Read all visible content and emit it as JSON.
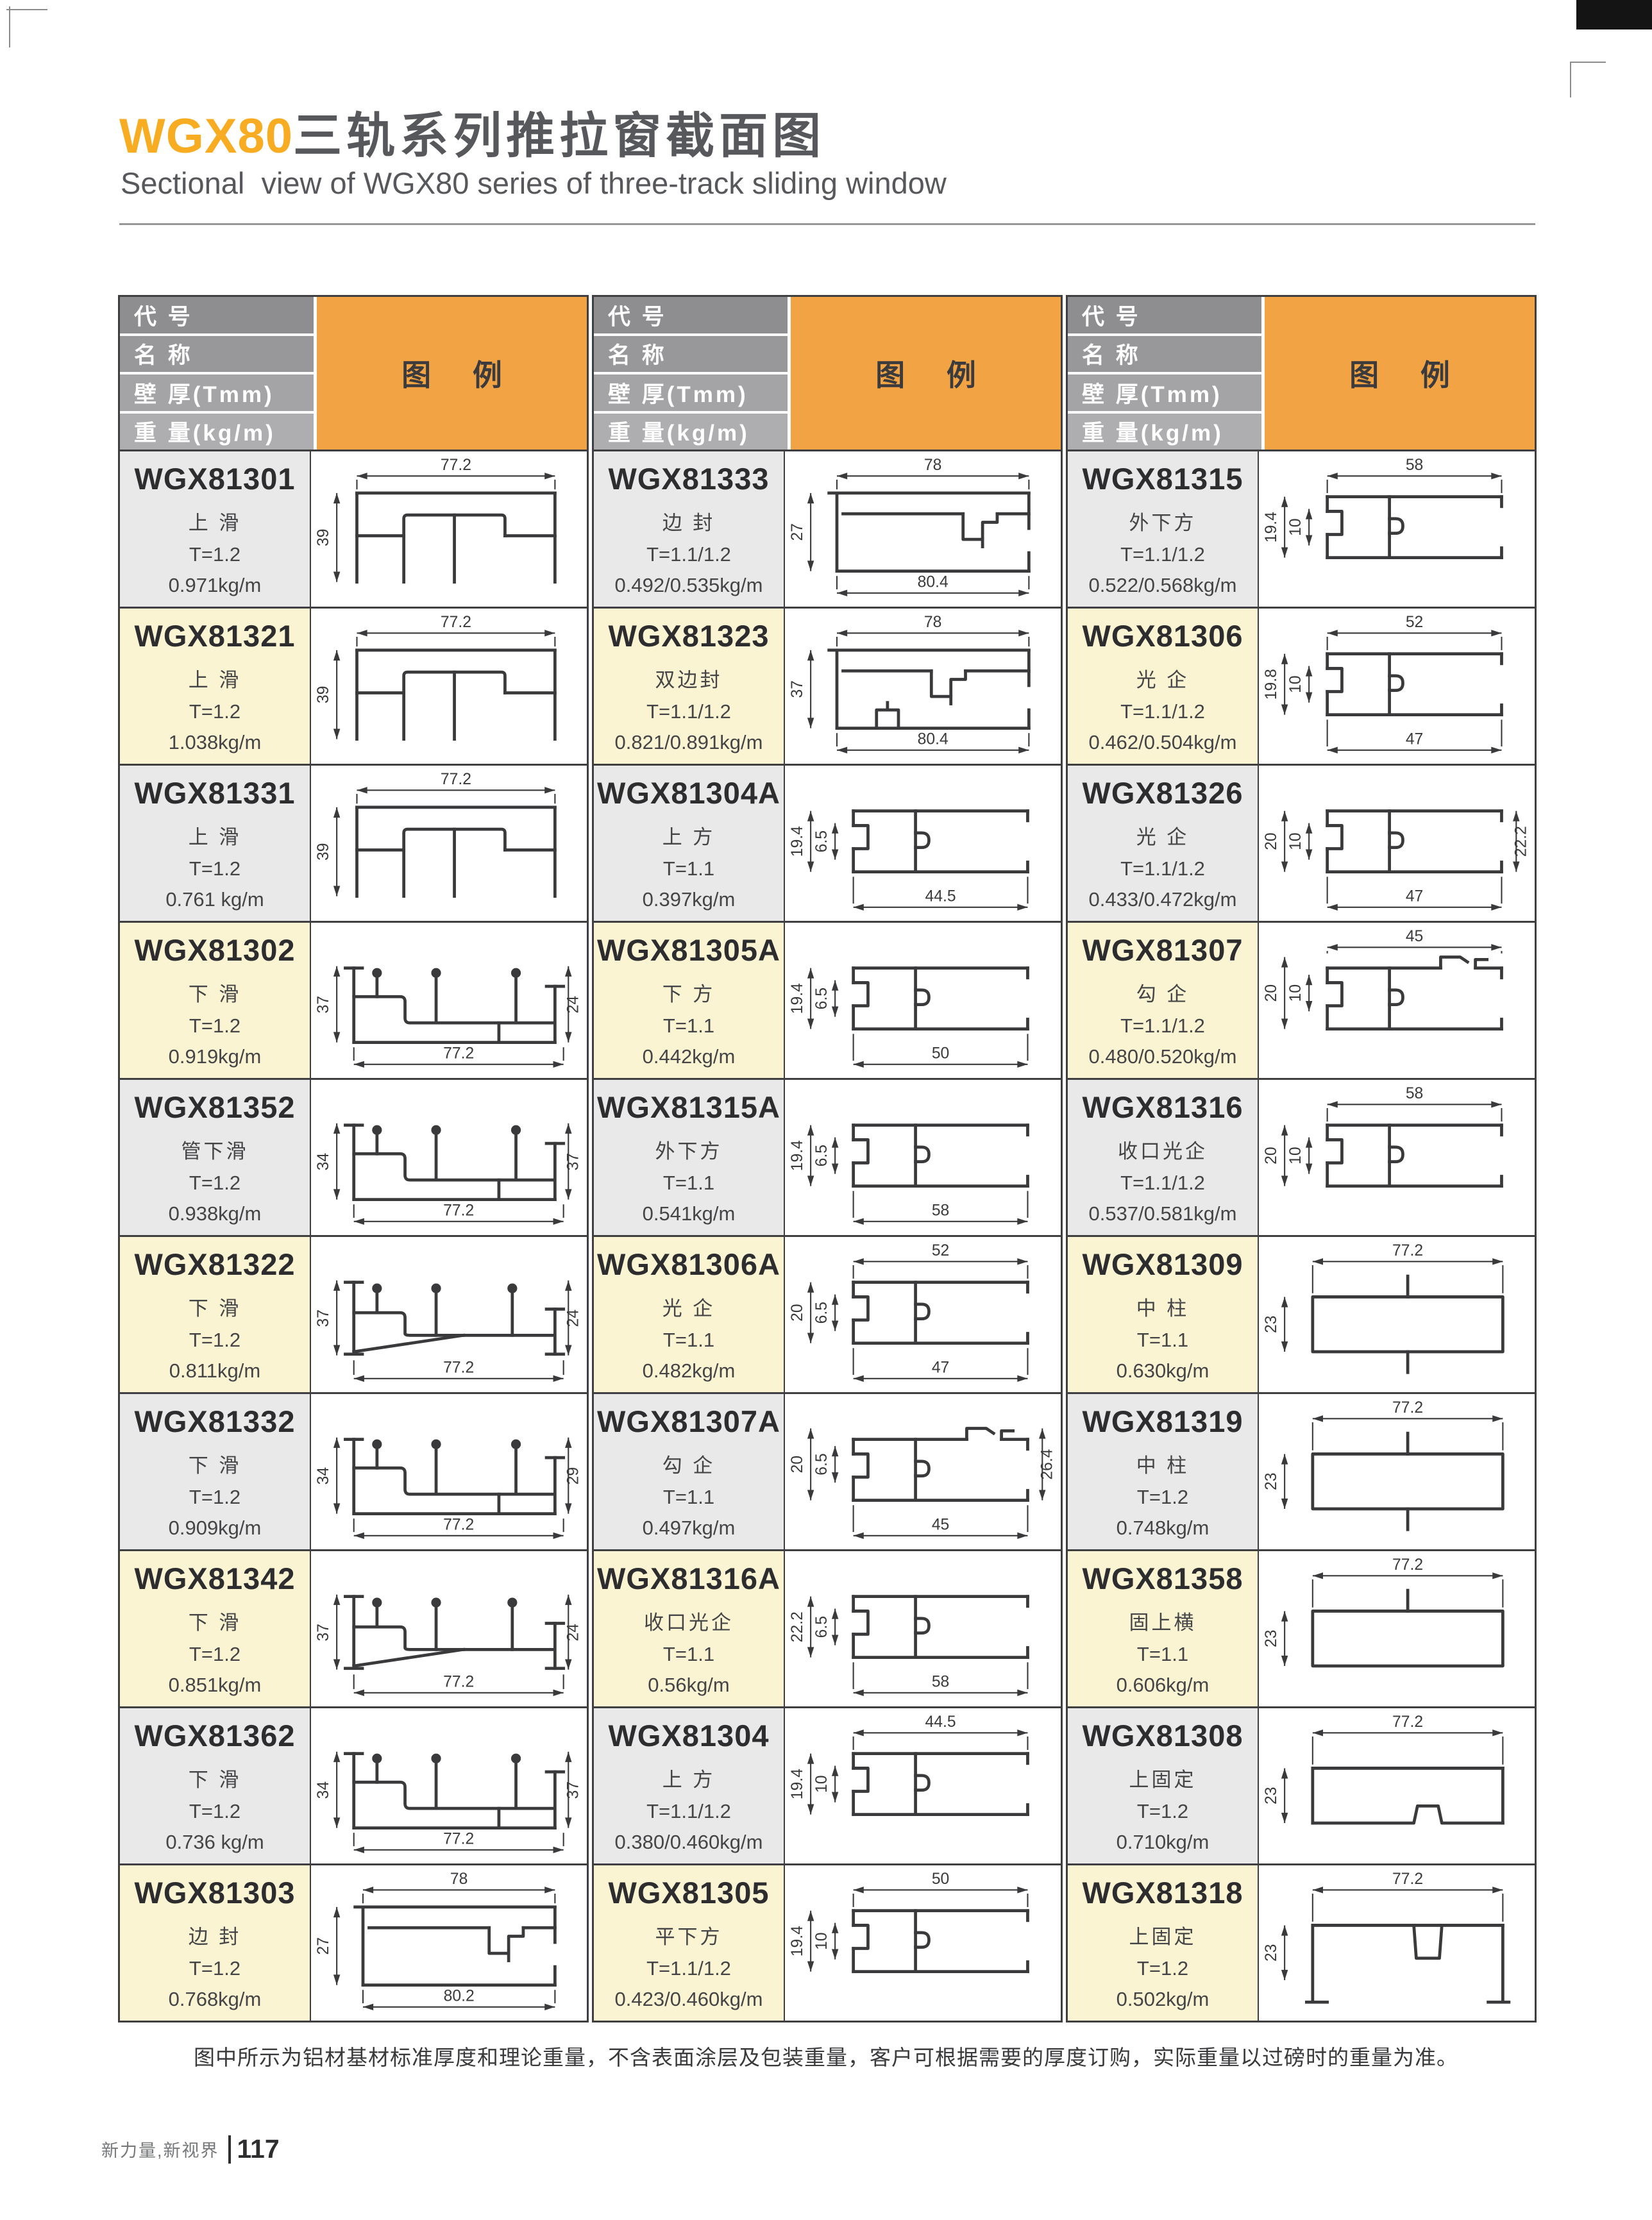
{
  "page": {
    "title_brand": "WGX80",
    "title_cn": "三轨系列推拉窗截面图",
    "subtitle": "Sectional  view of WGX80 series of three-track sliding window",
    "footer_note": "图中所示为铝材基材标准厚度和理论重量，不含表面涂层及包装重量，客户可根据需要的厚度订购，实际重量以过磅时的重量为准。",
    "footer_brand": "新力量,新视界",
    "page_number": "117"
  },
  "colors": {
    "accent_orange": "#F2A444",
    "title_orange": "#F7AC21",
    "header_grays": [
      "#8E8E90",
      "#98989A",
      "#A4A4A6",
      "#AEAEB0"
    ],
    "row_gray": "#E9E9EA",
    "row_cream": "#FAF4D2",
    "line_dark": "#3F3F41",
    "drawing_ink": "#3A3A3C"
  },
  "table": {
    "header": {
      "code_label": "代 号",
      "name_label": "名 称",
      "thickness_label": "壁 厚(Tmm)",
      "weight_label": "重 量(kg/m)",
      "legend_label": "图 例"
    },
    "groups": [
      {
        "rows": [
          {
            "code": "WGX81301",
            "name": "上 滑",
            "thickness": "T=1.2",
            "weight": "0.971kg/m",
            "shape": "top-track",
            "dims": [
              {
                "side": "top",
                "value": "77.2"
              },
              {
                "side": "left",
                "value": "39"
              }
            ]
          },
          {
            "code": "WGX81321",
            "name": "上 滑",
            "thickness": "T=1.2",
            "weight": "1.038kg/m",
            "shape": "top-track",
            "dims": [
              {
                "side": "top",
                "value": "77.2"
              },
              {
                "side": "left",
                "value": "39"
              }
            ]
          },
          {
            "code": "WGX81331",
            "name": "上 滑",
            "thickness": "T=1.2",
            "weight": "0.761 kg/m",
            "shape": "top-track",
            "dims": [
              {
                "side": "top",
                "value": "77.2"
              },
              {
                "side": "left",
                "value": "39"
              }
            ]
          },
          {
            "code": "WGX81302",
            "name": "下 滑",
            "thickness": "T=1.2",
            "weight": "0.919kg/m",
            "shape": "bottom-track",
            "dims": [
              {
                "side": "left",
                "value": "37"
              },
              {
                "side": "right",
                "value": "24"
              },
              {
                "side": "bottom",
                "value": "77.2"
              }
            ]
          },
          {
            "code": "WGX81352",
            "name": "管下滑",
            "thickness": "T=1.2",
            "weight": "0.938kg/m",
            "shape": "bottom-track",
            "dims": [
              {
                "side": "left",
                "value": "34"
              },
              {
                "side": "right",
                "value": "37"
              },
              {
                "side": "bottom",
                "value": "77.2"
              }
            ]
          },
          {
            "code": "WGX81322",
            "name": "下 滑",
            "thickness": "T=1.2",
            "weight": "0.811kg/m",
            "shape": "bottom-track-slope",
            "dims": [
              {
                "side": "left",
                "value": "37"
              },
              {
                "side": "right",
                "value": "24"
              },
              {
                "side": "bottom",
                "value": "77.2"
              }
            ]
          },
          {
            "code": "WGX81332",
            "name": "下 滑",
            "thickness": "T=1.2",
            "weight": "0.909kg/m",
            "shape": "bottom-track",
            "dims": [
              {
                "side": "left",
                "value": "34"
              },
              {
                "side": "right",
                "value": "29"
              },
              {
                "side": "bottom",
                "value": "77.2"
              }
            ]
          },
          {
            "code": "WGX81342",
            "name": "下 滑",
            "thickness": "T=1.2",
            "weight": "0.851kg/m",
            "shape": "bottom-track-slope",
            "dims": [
              {
                "side": "left",
                "value": "37"
              },
              {
                "side": "right",
                "value": "24"
              },
              {
                "side": "bottom",
                "value": "77.2"
              }
            ]
          },
          {
            "code": "WGX81362",
            "name": "下 滑",
            "thickness": "T=1.2",
            "weight": "0.736 kg/m",
            "shape": "bottom-track",
            "dims": [
              {
                "side": "left",
                "value": "34"
              },
              {
                "side": "right",
                "value": "37"
              },
              {
                "side": "bottom",
                "value": "77.2"
              }
            ]
          },
          {
            "code": "WGX81303",
            "name": "边 封",
            "thickness": "T=1.2",
            "weight": "0.768kg/m",
            "shape": "edge-seal",
            "dims": [
              {
                "side": "top",
                "value": "78"
              },
              {
                "side": "left",
                "value": "27"
              },
              {
                "side": "bottom",
                "value": "80.2"
              }
            ]
          }
        ]
      },
      {
        "rows": [
          {
            "code": "WGX81333",
            "name": "边 封",
            "thickness": "T=1.1/1.2",
            "weight": "0.492/0.535kg/m",
            "shape": "edge-seal",
            "dims": [
              {
                "side": "top",
                "value": "78"
              },
              {
                "side": "left",
                "value": "27"
              },
              {
                "side": "bottom",
                "value": "80.4"
              }
            ]
          },
          {
            "code": "WGX81323",
            "name": "双边封",
            "thickness": "T=1.1/1.2",
            "weight": "0.821/0.891kg/m",
            "shape": "edge-seal-double",
            "dims": [
              {
                "side": "top",
                "value": "78"
              },
              {
                "side": "left",
                "value": "37"
              },
              {
                "side": "bottom",
                "value": "80.4"
              }
            ]
          },
          {
            "code": "WGX81304A",
            "name": "上 方",
            "thickness": "T=1.1",
            "weight": "0.397kg/m",
            "shape": "sash",
            "dims": [
              {
                "side": "left",
                "value": "19.4"
              },
              {
                "side": "left_inner",
                "value": "6.5"
              },
              {
                "side": "bottom",
                "value": "44.5"
              }
            ]
          },
          {
            "code": "WGX81305A",
            "name": "下 方",
            "thickness": "T=1.1",
            "weight": "0.442kg/m",
            "shape": "sash",
            "dims": [
              {
                "side": "left",
                "value": "19.4"
              },
              {
                "side": "left_inner",
                "value": "6.5"
              },
              {
                "side": "bottom",
                "value": "50"
              }
            ]
          },
          {
            "code": "WGX81315A",
            "name": "外下方",
            "thickness": "T=1.1",
            "weight": "0.541kg/m",
            "shape": "sash",
            "dims": [
              {
                "side": "left",
                "value": "19.4"
              },
              {
                "side": "left_inner",
                "value": "6.5"
              },
              {
                "side": "bottom",
                "value": "58"
              }
            ]
          },
          {
            "code": "WGX81306A",
            "name": "光 企",
            "thickness": "T=1.1",
            "weight": "0.482kg/m",
            "shape": "sash",
            "dims": [
              {
                "side": "top",
                "value": "52"
              },
              {
                "side": "left",
                "value": "20"
              },
              {
                "side": "left_inner",
                "value": "6.5"
              },
              {
                "side": "bottom",
                "value": "47"
              }
            ]
          },
          {
            "code": "WGX81307A",
            "name": "勾 企",
            "thickness": "T=1.1",
            "weight": "0.497kg/m",
            "shape": "sash-hook",
            "dims": [
              {
                "side": "left",
                "value": "20"
              },
              {
                "side": "left_inner",
                "value": "6.5"
              },
              {
                "side": "right",
                "value": "26.4"
              },
              {
                "side": "bottom",
                "value": "45"
              }
            ]
          },
          {
            "code": "WGX81316A",
            "name": "收口光企",
            "thickness": "T=1.1",
            "weight": "0.56kg/m",
            "shape": "sash",
            "dims": [
              {
                "side": "left",
                "value": "22.2"
              },
              {
                "side": "left_inner",
                "value": "6.5"
              },
              {
                "side": "bottom",
                "value": "58"
              }
            ]
          },
          {
            "code": "WGX81304",
            "name": "上 方",
            "thickness": "T=1.1/1.2",
            "weight": "0.380/0.460kg/m",
            "shape": "sash",
            "dims": [
              {
                "side": "top",
                "value": "44.5"
              },
              {
                "side": "left",
                "value": "19.4"
              },
              {
                "side": "left_inner",
                "value": "10"
              }
            ]
          },
          {
            "code": "WGX81305",
            "name": "平下方",
            "thickness": "T=1.1/1.2",
            "weight": "0.423/0.460kg/m",
            "shape": "sash",
            "dims": [
              {
                "side": "top",
                "value": "50"
              },
              {
                "side": "left",
                "value": "19.4"
              },
              {
                "side": "left_inner",
                "value": "10"
              }
            ]
          }
        ]
      },
      {
        "rows": [
          {
            "code": "WGX81315",
            "name": "外下方",
            "thickness": "T=1.1/1.2",
            "weight": "0.522/0.568kg/m",
            "shape": "sash",
            "dims": [
              {
                "side": "top",
                "value": "58"
              },
              {
                "side": "left",
                "value": "19.4"
              },
              {
                "side": "left_inner",
                "value": "10"
              }
            ]
          },
          {
            "code": "WGX81306",
            "name": "光 企",
            "thickness": "T=1.1/1.2",
            "weight": "0.462/0.504kg/m",
            "shape": "sash",
            "dims": [
              {
                "side": "top",
                "value": "52"
              },
              {
                "side": "left",
                "value": "19.8"
              },
              {
                "side": "left_inner",
                "value": "10"
              },
              {
                "side": "bottom",
                "value": "47"
              }
            ]
          },
          {
            "code": "WGX81326",
            "name": "光 企",
            "thickness": "T=1.1/1.2",
            "weight": "0.433/0.472kg/m",
            "shape": "sash",
            "dims": [
              {
                "side": "left",
                "value": "20"
              },
              {
                "side": "left_inner",
                "value": "10"
              },
              {
                "side": "right",
                "value": "22.2"
              },
              {
                "side": "bottom",
                "value": "47"
              }
            ]
          },
          {
            "code": "WGX81307",
            "name": "勾 企",
            "thickness": "T=1.1/1.2",
            "weight": "0.480/0.520kg/m",
            "shape": "sash-hook",
            "dims": [
              {
                "side": "top",
                "value": "45"
              },
              {
                "side": "left",
                "value": "20"
              },
              {
                "side": "left_inner",
                "value": "10"
              }
            ]
          },
          {
            "code": "WGX81316",
            "name": "收口光企",
            "thickness": "T=1.1/1.2",
            "weight": "0.537/0.581kg/m",
            "shape": "sash",
            "dims": [
              {
                "side": "top",
                "value": "58"
              },
              {
                "side": "left",
                "value": "20"
              },
              {
                "side": "left_inner",
                "value": "10"
              }
            ]
          },
          {
            "code": "WGX81309",
            "name": "中 柱",
            "thickness": "T=1.1",
            "weight": "0.630kg/m",
            "shape": "mid-column-both",
            "dims": [
              {
                "side": "top",
                "value": "77.2"
              },
              {
                "side": "left",
                "value": "23"
              }
            ]
          },
          {
            "code": "WGX81319",
            "name": "中 柱",
            "thickness": "T=1.2",
            "weight": "0.748kg/m",
            "shape": "mid-column-both",
            "dims": [
              {
                "side": "top",
                "value": "77.2"
              },
              {
                "side": "left",
                "value": "23"
              }
            ]
          },
          {
            "code": "WGX81358",
            "name": "固上横",
            "thickness": "T=1.1",
            "weight": "0.606kg/m",
            "shape": "mid-column-up",
            "dims": [
              {
                "side": "top",
                "value": "77.2"
              },
              {
                "side": "left",
                "value": "23"
              }
            ]
          },
          {
            "code": "WGX81308",
            "name": "上固定",
            "thickness": "T=1.2",
            "weight": "0.710kg/m",
            "shape": "flat-notch",
            "dims": [
              {
                "side": "top",
                "value": "77.2"
              },
              {
                "side": "left",
                "value": "23"
              }
            ]
          },
          {
            "code": "WGX81318",
            "name": "上固定",
            "thickness": "T=1.2",
            "weight": "0.502kg/m",
            "shape": "flat-notch-open",
            "dims": [
              {
                "side": "top",
                "value": "77.2"
              },
              {
                "side": "left",
                "value": "23"
              }
            ]
          }
        ]
      }
    ]
  }
}
